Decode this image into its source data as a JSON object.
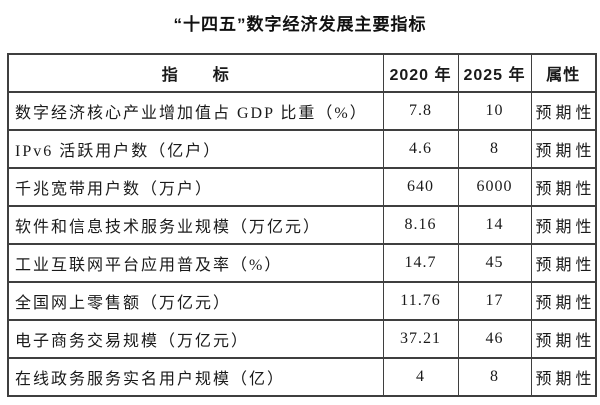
{
  "page": {
    "title": "“十四五”数字经济发展主要指标"
  },
  "table": {
    "headers": {
      "indicator": "指　　标",
      "y2020": "2020 年",
      "y2025": "2025 年",
      "attribute": "属性"
    },
    "rows": [
      {
        "indicator": "数字经济核心产业增加值占 GDP 比重（%）",
        "y2020": "7.8",
        "y2025": "10",
        "attribute": "预期性"
      },
      {
        "indicator": "IPv6 活跃用户数（亿户）",
        "y2020": "4.6",
        "y2025": "8",
        "attribute": "预期性"
      },
      {
        "indicator": "千兆宽带用户数（万户）",
        "y2020": "640",
        "y2025": "6000",
        "attribute": "预期性"
      },
      {
        "indicator": "软件和信息技术服务业规模（万亿元）",
        "y2020": "8.16",
        "y2025": "14",
        "attribute": "预期性"
      },
      {
        "indicator": "工业互联网平台应用普及率（%）",
        "y2020": "14.7",
        "y2025": "45",
        "attribute": "预期性"
      },
      {
        "indicator": "全国网上零售额（万亿元）",
        "y2020": "11.76",
        "y2025": "17",
        "attribute": "预期性"
      },
      {
        "indicator": "电子商务交易规模（万亿元）",
        "y2020": "37.21",
        "y2025": "46",
        "attribute": "预期性"
      },
      {
        "indicator": "在线政务服务实名用户规模（亿）",
        "y2020": "4",
        "y2025": "8",
        "attribute": "预期性"
      }
    ]
  },
  "colors": {
    "border": "#3f3f3f",
    "text": "#1a1a1a",
    "background": "#ffffff"
  }
}
